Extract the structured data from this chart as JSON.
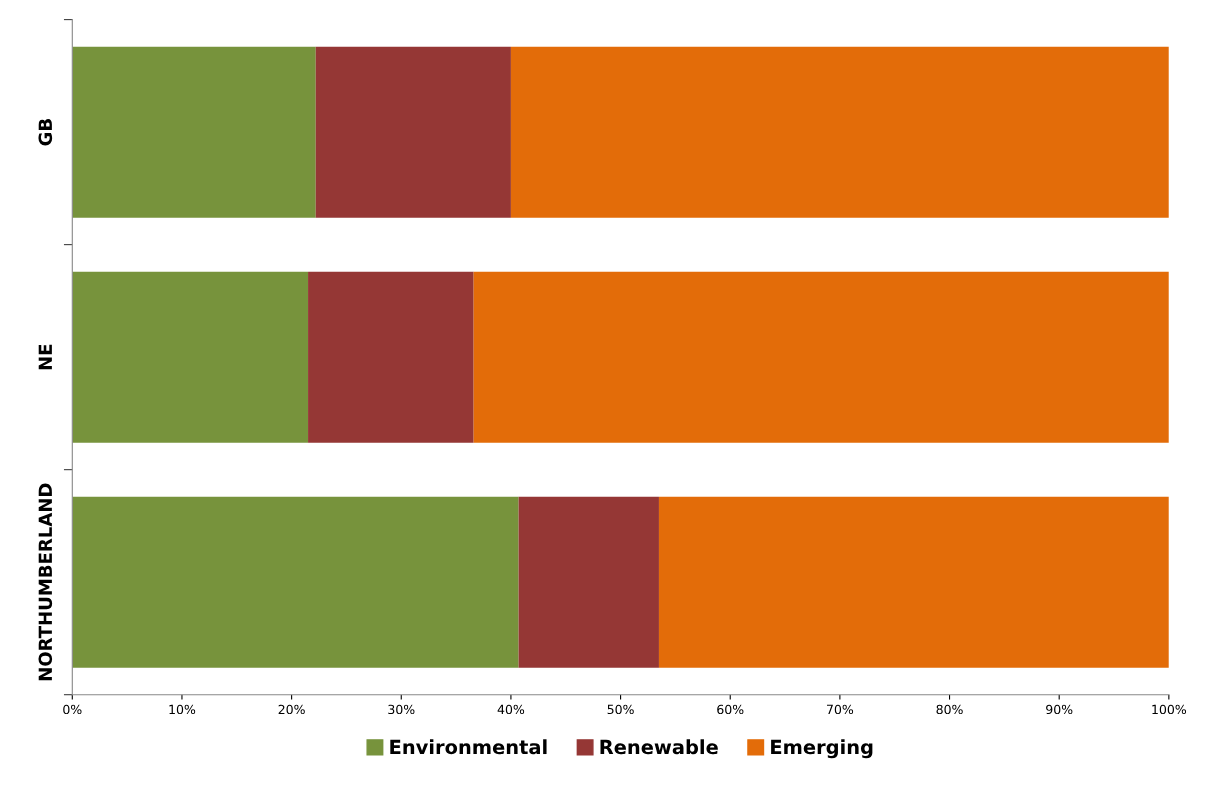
{
  "chart_data": {
    "type": "bar",
    "orientation": "horizontal",
    "stacked": true,
    "categories": [
      "GB",
      "NE",
      "NORTHUMBERLAND"
    ],
    "series": [
      {
        "name": "Environmental",
        "color": "#77933c",
        "values": [
          22.2,
          21.5,
          40.7
        ]
      },
      {
        "name": "Renewable",
        "color": "#953735",
        "values": [
          17.8,
          15.1,
          12.8
        ]
      },
      {
        "name": "Emerging",
        "color": "#e36c09",
        "values": [
          60.0,
          63.4,
          46.5
        ]
      }
    ],
    "xlim": [
      0,
      100
    ],
    "xticks": [
      {
        "value": 0,
        "label": "0%"
      },
      {
        "value": 10,
        "label": "10%"
      },
      {
        "value": 20,
        "label": "20%"
      },
      {
        "value": 30,
        "label": "30%"
      },
      {
        "value": 40,
        "label": "40%"
      },
      {
        "value": 50,
        "label": "50%"
      },
      {
        "value": 60,
        "label": "60%"
      },
      {
        "value": 70,
        "label": "70%"
      },
      {
        "value": 80,
        "label": "80%"
      },
      {
        "value": 90,
        "label": "90%"
      },
      {
        "value": 100,
        "label": "100%"
      }
    ],
    "grid": false,
    "legend": "bottom"
  }
}
